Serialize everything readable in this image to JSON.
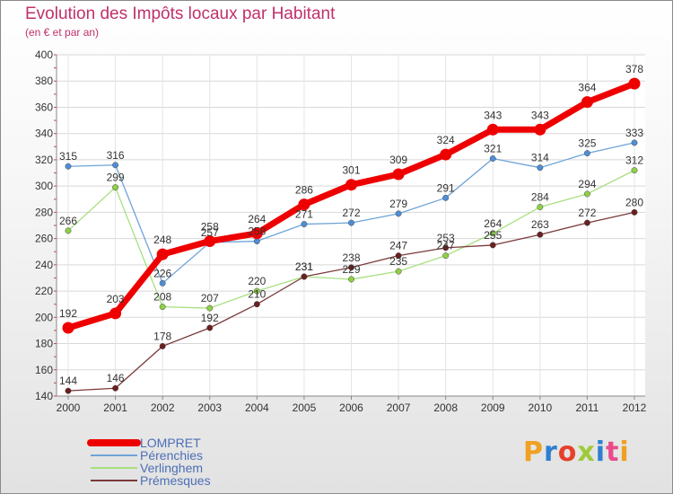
{
  "title": "Evolution des Impôts locaux par Habitant",
  "subtitle": "(en € et par an)",
  "logo": {
    "text": "Proxiti",
    "colors": [
      "#f0a022",
      "#2f7fd0",
      "#e6402a",
      "#9ecb3a",
      "#2f7fd0",
      "#e94b8a",
      "#f0a022"
    ]
  },
  "chart_data": {
    "type": "line",
    "title": "Evolution des Impôts locaux par Habitant",
    "subtitle": "(en € et par an)",
    "xlabel": "",
    "ylabel": "",
    "categories": [
      "2000",
      "2001",
      "2002",
      "2003",
      "2004",
      "2005",
      "2006",
      "2007",
      "2008",
      "2009",
      "2010",
      "2011",
      "2012"
    ],
    "ylim": [
      140,
      400
    ],
    "yticks": [
      140,
      160,
      180,
      200,
      220,
      240,
      260,
      280,
      300,
      320,
      340,
      360,
      380,
      400
    ],
    "grid": true,
    "legend_position": "bottom-left",
    "series": [
      {
        "name": "LOMPRET",
        "color": "#ee0000",
        "emphasis": "thick",
        "values": [
          192,
          203,
          248,
          258,
          264,
          286,
          301,
          309,
          324,
          343,
          343,
          364,
          378
        ]
      },
      {
        "name": "Pérenchies",
        "color": "#6fa3d8",
        "point_color": "#4f8ed6",
        "values": [
          315,
          316,
          226,
          257,
          258,
          271,
          272,
          279,
          291,
          321,
          314,
          325,
          333
        ]
      },
      {
        "name": "Verlinghem",
        "color": "#a8e080",
        "point_color": "#8fd046",
        "values": [
          266,
          299,
          208,
          207,
          220,
          231,
          229,
          235,
          247,
          264,
          284,
          294,
          312
        ]
      },
      {
        "name": "Prémesques",
        "color": "#7a3a3a",
        "point_color": "#6b1f1f",
        "values": [
          144,
          146,
          178,
          192,
          210,
          231,
          238,
          247,
          253,
          255,
          263,
          272,
          280
        ]
      }
    ]
  }
}
